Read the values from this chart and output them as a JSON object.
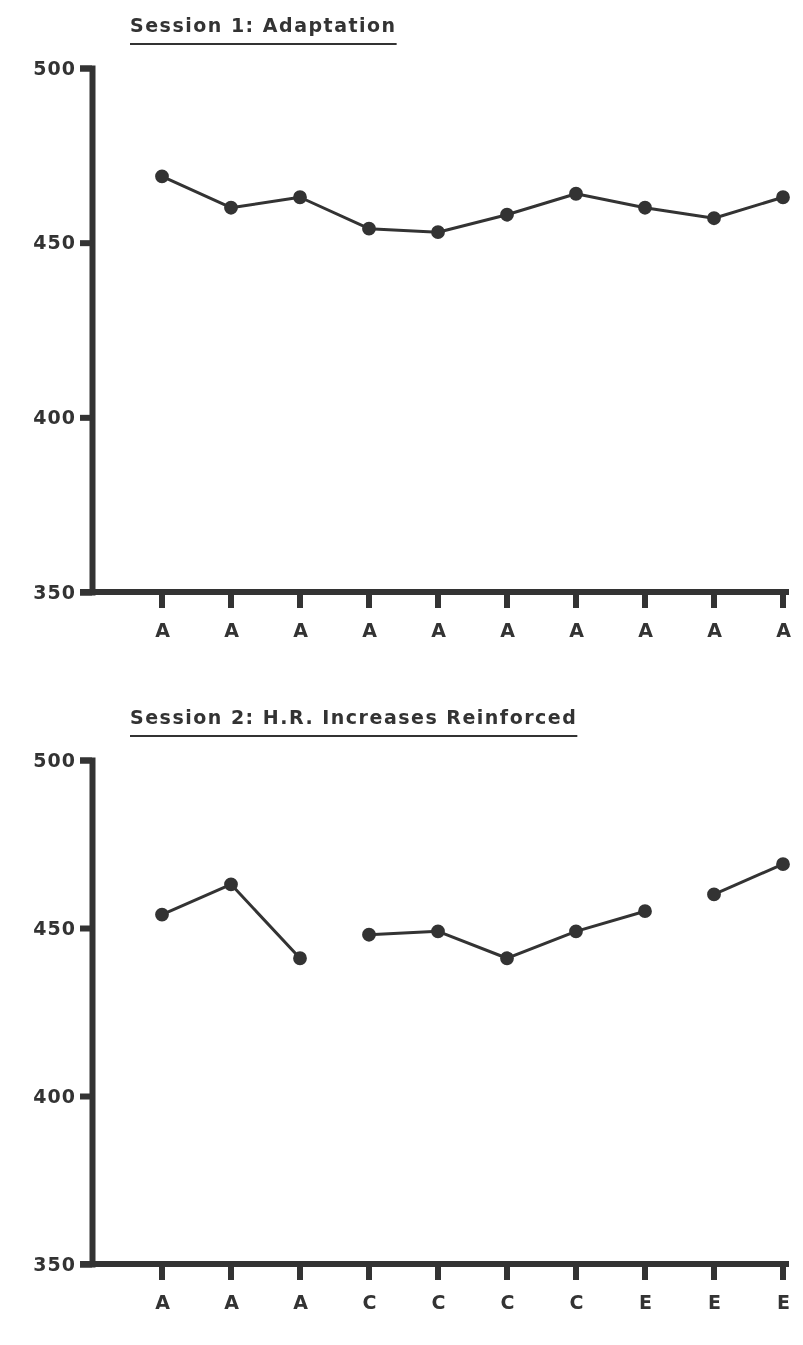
{
  "chart_data": [
    {
      "type": "line",
      "title": "Session 1: Adaptation",
      "categories": [
        "A",
        "A",
        "A",
        "A",
        "A",
        "A",
        "A",
        "A",
        "A",
        "A"
      ],
      "ylim": [
        350,
        500
      ],
      "yticks": [
        350,
        400,
        450,
        500
      ],
      "marker": "circle",
      "grid": false,
      "series": [
        {
          "color": "#333333",
          "values": [
            469,
            460,
            463,
            454,
            453,
            458,
            464,
            460,
            457,
            463
          ]
        }
      ]
    },
    {
      "type": "line",
      "title": "Session 2: H.R. Increases Reinforced",
      "categories": [
        "A",
        "A",
        "A",
        "C",
        "C",
        "C",
        "C",
        "E",
        "E",
        "E"
      ],
      "ylim": [
        350,
        500
      ],
      "yticks": [
        350,
        400,
        450,
        500
      ],
      "marker": "circle",
      "grid": false,
      "series": [
        {
          "color": "#333333",
          "values": [
            454,
            463,
            441,
            null,
            null,
            null,
            null,
            null,
            null,
            null
          ]
        },
        {
          "color": "#333333",
          "values": [
            null,
            null,
            null,
            448,
            449,
            441,
            449,
            455,
            null,
            null
          ]
        },
        {
          "color": "#333333",
          "values": [
            null,
            null,
            null,
            null,
            null,
            null,
            null,
            null,
            460,
            469
          ]
        }
      ]
    }
  ]
}
